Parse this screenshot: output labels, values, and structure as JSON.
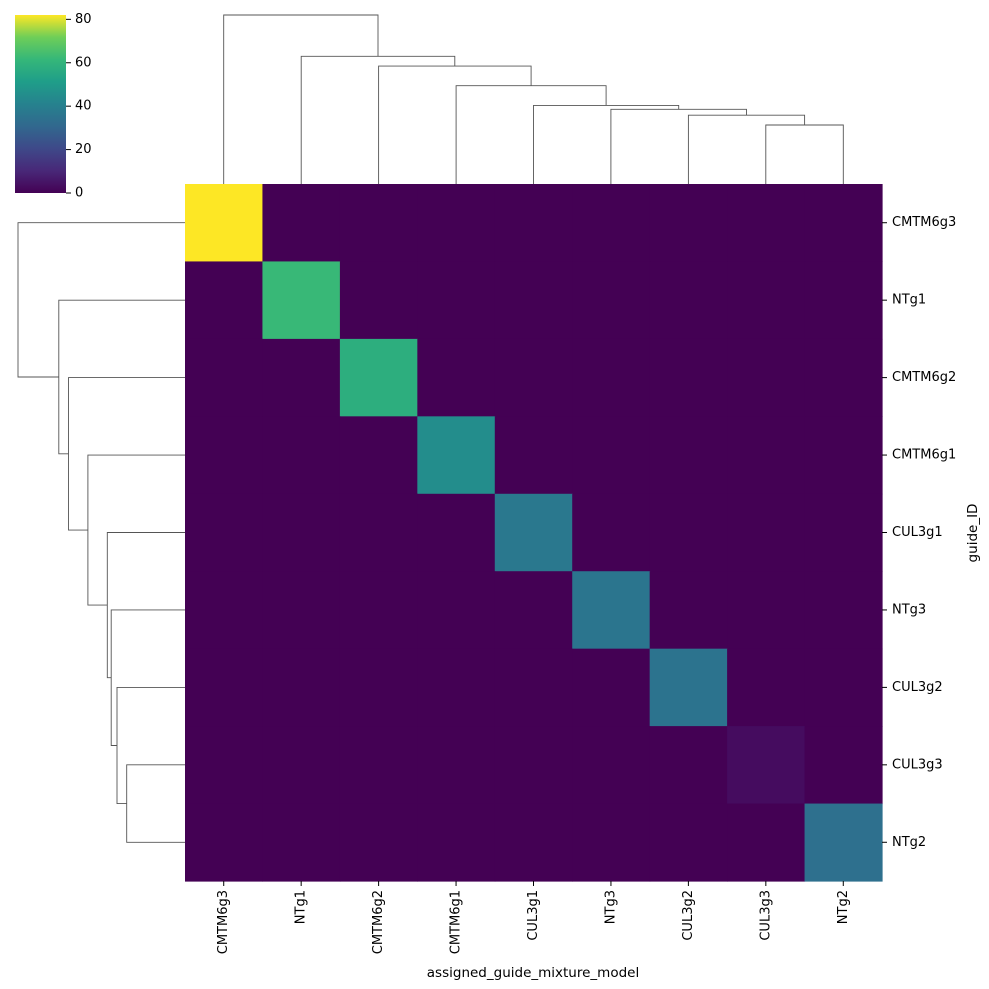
{
  "chart_data": {
    "type": "heatmap",
    "title": "",
    "xlabel": "assigned_guide_mixture_model",
    "ylabel": "guide_ID",
    "x_categories": [
      "CMTM6g3",
      "NTg1",
      "CMTM6g2",
      "CMTM6g1",
      "CUL3g1",
      "NTg3",
      "CUL3g2",
      "CUL3g3",
      "NTg2"
    ],
    "y_categories": [
      "CMTM6g3",
      "NTg1",
      "CMTM6g2",
      "CMTM6g1",
      "CUL3g1",
      "NTg3",
      "CUL3g2",
      "CUL3g3",
      "NTg2"
    ],
    "values": [
      [
        82,
        0,
        0,
        0,
        0,
        0,
        0,
        0,
        0
      ],
      [
        0,
        62,
        0,
        0,
        0,
        0,
        0,
        0,
        0
      ],
      [
        0,
        0,
        58,
        0,
        0,
        0,
        0,
        0,
        0
      ],
      [
        0,
        0,
        0,
        45,
        0,
        0,
        0,
        0,
        0
      ],
      [
        0,
        0,
        0,
        0,
        37,
        0,
        0,
        0,
        0
      ],
      [
        0,
        0,
        0,
        0,
        0,
        36,
        0,
        0,
        0
      ],
      [
        0,
        0,
        0,
        0,
        0,
        0,
        35,
        0,
        0
      ],
      [
        0,
        0,
        0,
        0,
        0,
        0,
        0,
        3,
        0
      ],
      [
        0,
        0,
        0,
        0,
        0,
        0,
        0,
        0,
        34
      ]
    ],
    "colormap": "viridis",
    "color_range": [
      0,
      82
    ],
    "colorbar_ticks": [
      0,
      20,
      40,
      60,
      80
    ],
    "col_dendrogram": {
      "merges": [
        {
          "left": 7,
          "right": 8,
          "height": 0.3
        },
        {
          "left": 6,
          "right": "m0",
          "height": 0.35
        },
        {
          "left": 5,
          "right": "m1",
          "height": 0.38
        },
        {
          "left": 4,
          "right": "m2",
          "height": 0.4
        },
        {
          "left": 3,
          "right": "m3",
          "height": 0.5
        },
        {
          "left": 2,
          "right": "m4",
          "height": 0.6
        },
        {
          "left": 1,
          "right": "m5",
          "height": 0.65
        },
        {
          "left": 0,
          "right": "m6",
          "height": 0.86
        }
      ]
    },
    "row_dendrogram": {
      "merges": [
        {
          "left": 7,
          "right": 8,
          "height": 0.3
        },
        {
          "left": 6,
          "right": "m0",
          "height": 0.35
        },
        {
          "left": 5,
          "right": "m1",
          "height": 0.38
        },
        {
          "left": 4,
          "right": "m2",
          "height": 0.4
        },
        {
          "left": 3,
          "right": "m3",
          "height": 0.5
        },
        {
          "left": 2,
          "right": "m4",
          "height": 0.6
        },
        {
          "left": 1,
          "right": "m5",
          "height": 0.65
        },
        {
          "left": 0,
          "right": "m6",
          "height": 0.86
        }
      ]
    }
  }
}
